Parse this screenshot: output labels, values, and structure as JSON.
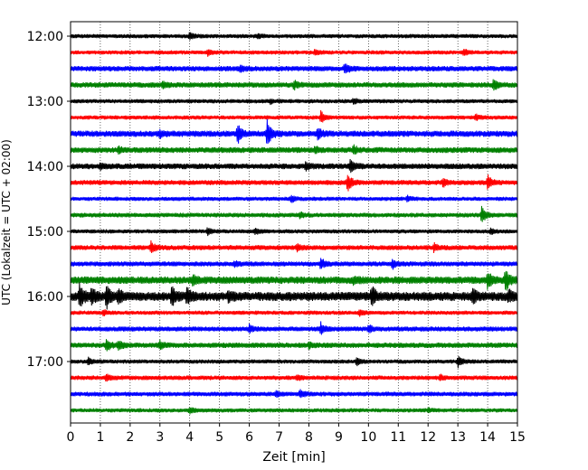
{
  "chart_data": {
    "type": "line",
    "title": "",
    "xlabel": "Zeit  [min]",
    "ylabel": "UTC (Lokalzeit = UTC + 02:00)",
    "xlim": [
      0,
      15
    ],
    "x_ticks": [
      0,
      1,
      2,
      3,
      4,
      5,
      6,
      7,
      8,
      9,
      10,
      11,
      12,
      13,
      14,
      15
    ],
    "x_tick_labels": [
      "0",
      "1",
      "2",
      "3",
      "4",
      "5",
      "6",
      "7",
      "8",
      "9",
      "10",
      "11",
      "12",
      "13",
      "14",
      "15"
    ],
    "y_tick_labels": [
      "12:00",
      "13:00",
      "14:00",
      "15:00",
      "16:00",
      "17:00"
    ],
    "y_tick_rows": [
      0,
      4,
      8,
      12,
      16,
      20
    ],
    "trace_minutes": 15,
    "grid": "vertical dotted at each minute",
    "color_cycle": [
      "#000000",
      "#ff0000",
      "#0000ff",
      "#008000"
    ],
    "traces": [
      {
        "start": "12:00",
        "color": "#000000",
        "noise": 1.0,
        "events": [
          {
            "t": 4.0,
            "amp": 4
          },
          {
            "t": 6.3,
            "amp": 2
          }
        ]
      },
      {
        "start": "12:15",
        "color": "#ff0000",
        "noise": 1.0,
        "events": [
          {
            "t": 4.6,
            "amp": 3
          },
          {
            "t": 8.2,
            "amp": 3
          },
          {
            "t": 13.2,
            "amp": 3
          }
        ]
      },
      {
        "start": "12:30",
        "color": "#0000ff",
        "noise": 1.3,
        "events": [
          {
            "t": 9.2,
            "amp": 6
          },
          {
            "t": 5.7,
            "amp": 3
          }
        ]
      },
      {
        "start": "12:45",
        "color": "#008000",
        "noise": 1.3,
        "events": [
          {
            "t": 7.5,
            "amp": 4
          },
          {
            "t": 14.2,
            "amp": 7
          },
          {
            "t": 3.1,
            "amp": 3
          }
        ]
      },
      {
        "start": "13:00",
        "color": "#000000",
        "noise": 1.0,
        "events": [
          {
            "t": 6.7,
            "amp": 2
          },
          {
            "t": 9.5,
            "amp": 3
          }
        ]
      },
      {
        "start": "13:15",
        "color": "#ff0000",
        "noise": 1.0,
        "events": [
          {
            "t": 8.4,
            "amp": 7
          },
          {
            "t": 13.6,
            "amp": 3
          }
        ]
      },
      {
        "start": "13:30",
        "color": "#0000ff",
        "noise": 1.5,
        "events": [
          {
            "t": 5.6,
            "amp": 11
          },
          {
            "t": 6.6,
            "amp": 14
          },
          {
            "t": 8.3,
            "amp": 6
          },
          {
            "t": 3.0,
            "amp": 3
          }
        ]
      },
      {
        "start": "13:45",
        "color": "#008000",
        "noise": 1.4,
        "events": [
          {
            "t": 9.5,
            "amp": 4
          },
          {
            "t": 8.2,
            "amp": 3
          },
          {
            "t": 1.6,
            "amp": 3
          }
        ]
      },
      {
        "start": "14:00",
        "color": "#000000",
        "noise": 1.4,
        "events": [
          {
            "t": 9.4,
            "amp": 8
          },
          {
            "t": 7.9,
            "amp": 4
          },
          {
            "t": 1.0,
            "amp": 3
          }
        ]
      },
      {
        "start": "14:15",
        "color": "#ff0000",
        "noise": 1.2,
        "events": [
          {
            "t": 9.3,
            "amp": 10
          },
          {
            "t": 14.0,
            "amp": 8
          },
          {
            "t": 12.5,
            "amp": 4
          }
        ]
      },
      {
        "start": "14:30",
        "color": "#0000ff",
        "noise": 1.0,
        "events": [
          {
            "t": 7.4,
            "amp": 4
          },
          {
            "t": 11.3,
            "amp": 3
          }
        ]
      },
      {
        "start": "14:45",
        "color": "#008000",
        "noise": 1.1,
        "events": [
          {
            "t": 13.8,
            "amp": 9
          },
          {
            "t": 7.7,
            "amp": 3
          }
        ]
      },
      {
        "start": "15:00",
        "color": "#000000",
        "noise": 1.0,
        "events": [
          {
            "t": 4.6,
            "amp": 4
          },
          {
            "t": 6.2,
            "amp": 3
          },
          {
            "t": 14.1,
            "amp": 3
          }
        ]
      },
      {
        "start": "15:15",
        "color": "#ff0000",
        "noise": 1.2,
        "events": [
          {
            "t": 2.7,
            "amp": 6
          },
          {
            "t": 12.2,
            "amp": 4
          },
          {
            "t": 7.6,
            "amp": 3
          }
        ]
      },
      {
        "start": "15:30",
        "color": "#0000ff",
        "noise": 1.2,
        "events": [
          {
            "t": 8.4,
            "amp": 6
          },
          {
            "t": 10.8,
            "amp": 5
          },
          {
            "t": 5.5,
            "amp": 3
          }
        ]
      },
      {
        "start": "15:45",
        "color": "#008000",
        "noise": 1.8,
        "events": [
          {
            "t": 14.0,
            "amp": 10
          },
          {
            "t": 14.6,
            "amp": 12
          },
          {
            "t": 4.1,
            "amp": 5
          },
          {
            "t": 9.5,
            "amp": 3
          }
        ]
      },
      {
        "start": "16:00",
        "color": "#000000",
        "noise": 2.2,
        "events": [
          {
            "t": 0.3,
            "amp": 13
          },
          {
            "t": 0.7,
            "amp": 9
          },
          {
            "t": 1.2,
            "amp": 12
          },
          {
            "t": 1.6,
            "amp": 7
          },
          {
            "t": 3.4,
            "amp": 11
          },
          {
            "t": 3.9,
            "amp": 8
          },
          {
            "t": 10.1,
            "amp": 12
          },
          {
            "t": 13.5,
            "amp": 7
          },
          {
            "t": 14.7,
            "amp": 6
          },
          {
            "t": 5.3,
            "amp": 4
          }
        ]
      },
      {
        "start": "16:15",
        "color": "#ff0000",
        "noise": 1.0,
        "events": [
          {
            "t": 1.1,
            "amp": 3
          },
          {
            "t": 9.7,
            "amp": 3
          }
        ]
      },
      {
        "start": "16:30",
        "color": "#0000ff",
        "noise": 1.2,
        "events": [
          {
            "t": 8.4,
            "amp": 6
          },
          {
            "t": 6.0,
            "amp": 4
          },
          {
            "t": 10.0,
            "amp": 4
          }
        ]
      },
      {
        "start": "16:45",
        "color": "#008000",
        "noise": 1.3,
        "events": [
          {
            "t": 1.2,
            "amp": 6
          },
          {
            "t": 1.6,
            "amp": 5
          },
          {
            "t": 3.0,
            "amp": 4
          },
          {
            "t": 8.0,
            "amp": 3
          }
        ]
      },
      {
        "start": "17:00",
        "color": "#000000",
        "noise": 1.0,
        "events": [
          {
            "t": 0.6,
            "amp": 4
          },
          {
            "t": 9.6,
            "amp": 4
          },
          {
            "t": 13.0,
            "amp": 6
          }
        ]
      },
      {
        "start": "17:15",
        "color": "#ff0000",
        "noise": 1.1,
        "events": [
          {
            "t": 1.2,
            "amp": 4
          },
          {
            "t": 7.6,
            "amp": 3
          },
          {
            "t": 12.4,
            "amp": 3
          }
        ]
      },
      {
        "start": "17:30",
        "color": "#0000ff",
        "noise": 1.1,
        "events": [
          {
            "t": 7.7,
            "amp": 4
          },
          {
            "t": 6.9,
            "amp": 3
          }
        ]
      },
      {
        "start": "17:45",
        "color": "#008000",
        "noise": 1.0,
        "events": [
          {
            "t": 4.0,
            "amp": 3
          },
          {
            "t": 12.0,
            "amp": 2
          }
        ]
      }
    ]
  }
}
